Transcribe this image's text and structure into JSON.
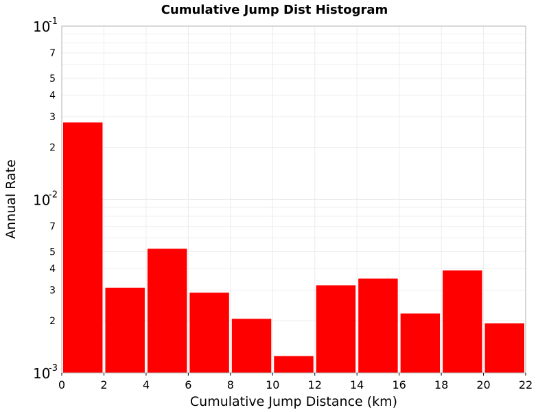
{
  "chart_data": {
    "type": "bar",
    "title": "Cumulative Jump Dist Histogram",
    "xlabel": "Cumulative Jump Distance (km)",
    "ylabel": "Annual Rate",
    "x_scale": "linear",
    "y_scale": "log",
    "xlim": [
      0,
      22
    ],
    "ylim": [
      0.001,
      0.1
    ],
    "grid": true,
    "bar_color": "#ff0000",
    "x_ticks": [
      "0",
      "2",
      "4",
      "6",
      "8",
      "10",
      "12",
      "14",
      "16",
      "18",
      "20",
      "22"
    ],
    "y_decade_ticks": [
      {
        "value": 0.001,
        "base": "10",
        "exp": "-3"
      },
      {
        "value": 0.01,
        "base": "10",
        "exp": "-2"
      },
      {
        "value": 0.1,
        "base": "10",
        "exp": "-1"
      }
    ],
    "y_minor_ticks": [
      {
        "value": 0.002,
        "label": "2"
      },
      {
        "value": 0.003,
        "label": "3"
      },
      {
        "value": 0.004,
        "label": "4"
      },
      {
        "value": 0.005,
        "label": "5"
      },
      {
        "value": 0.007,
        "label": "7"
      },
      {
        "value": 0.02,
        "label": "2"
      },
      {
        "value": 0.03,
        "label": "3"
      },
      {
        "value": 0.04,
        "label": "4"
      },
      {
        "value": 0.05,
        "label": "5"
      },
      {
        "value": 0.07,
        "label": "7"
      }
    ],
    "bins": [
      {
        "x0": 0,
        "x1": 2,
        "value": 0.0278
      },
      {
        "x0": 2,
        "x1": 4,
        "value": 0.0031
      },
      {
        "x0": 4,
        "x1": 6,
        "value": 0.0052
      },
      {
        "x0": 6,
        "x1": 8,
        "value": 0.0029
      },
      {
        "x0": 8,
        "x1": 10,
        "value": 0.00205
      },
      {
        "x0": 10,
        "x1": 12,
        "value": 0.00125
      },
      {
        "x0": 12,
        "x1": 14,
        "value": 0.0032
      },
      {
        "x0": 14,
        "x1": 16,
        "value": 0.0035
      },
      {
        "x0": 16,
        "x1": 18,
        "value": 0.0022
      },
      {
        "x0": 18,
        "x1": 20,
        "value": 0.0039
      },
      {
        "x0": 20,
        "x1": 22,
        "value": 0.00193
      }
    ]
  }
}
